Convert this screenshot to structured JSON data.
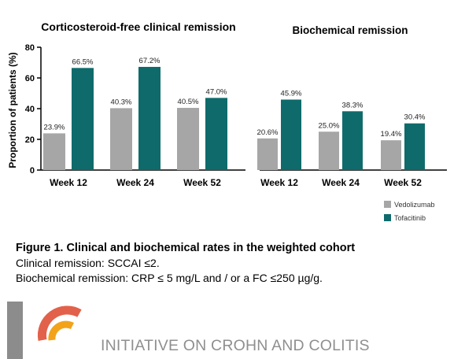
{
  "chart_data": [
    {
      "type": "bar",
      "title": "Corticosteroid-free clinical remission",
      "ylabel": "Proportion of patients (%)",
      "ylim": [
        0,
        80
      ],
      "yticks": [
        0,
        20,
        40,
        60,
        80
      ],
      "categories": [
        "Week 12",
        "Week 24",
        "Week 52"
      ],
      "series": [
        {
          "name": "Vedolizumab",
          "values": [
            23.9,
            40.3,
            40.5
          ],
          "labels": [
            "23.9%",
            "40.3%",
            "40.5%"
          ]
        },
        {
          "name": "Tofacitinib",
          "values": [
            66.5,
            67.2,
            47.0
          ],
          "labels": [
            "66.5%",
            "67.2%",
            "47.0%"
          ]
        }
      ]
    },
    {
      "type": "bar",
      "title": "Biochemical remission",
      "ylim": [
        0,
        80
      ],
      "categories": [
        "Week 12",
        "Week 24",
        "Week 52"
      ],
      "series": [
        {
          "name": "Vedolizumab",
          "values": [
            20.6,
            25.0,
            19.4
          ],
          "labels": [
            "20.6%",
            "25.0%",
            "19.4%"
          ]
        },
        {
          "name": "Tofacitinib",
          "values": [
            45.9,
            38.3,
            30.4
          ],
          "labels": [
            "45.9%",
            "38.3%",
            "30.4%"
          ]
        }
      ]
    }
  ],
  "legend": {
    "position": "bottom-right",
    "items": [
      {
        "label": "Vedolizumab",
        "color": "#a6a6a6"
      },
      {
        "label": "Tofacitinib",
        "color": "#0f6b6b"
      }
    ]
  },
  "colors": {
    "vedolizumab": "#a6a6a6",
    "tofacitinib": "#0f6b6b",
    "logo_orange": "#f2a31a",
    "logo_red": "#e2614b",
    "logo_gray": "#8c8c8c"
  },
  "caption": {
    "title": "Figure 1. Clinical and biochemical rates in the weighted cohort",
    "line1": "Clinical remission: SCCAI ≤2.",
    "line2": "Biochemical remission: CRP ≤ 5 mg/L and / or a FC ≤250 µg/g."
  },
  "brand": {
    "name": "INITIATIVE ON CROHN AND COLITIS"
  }
}
